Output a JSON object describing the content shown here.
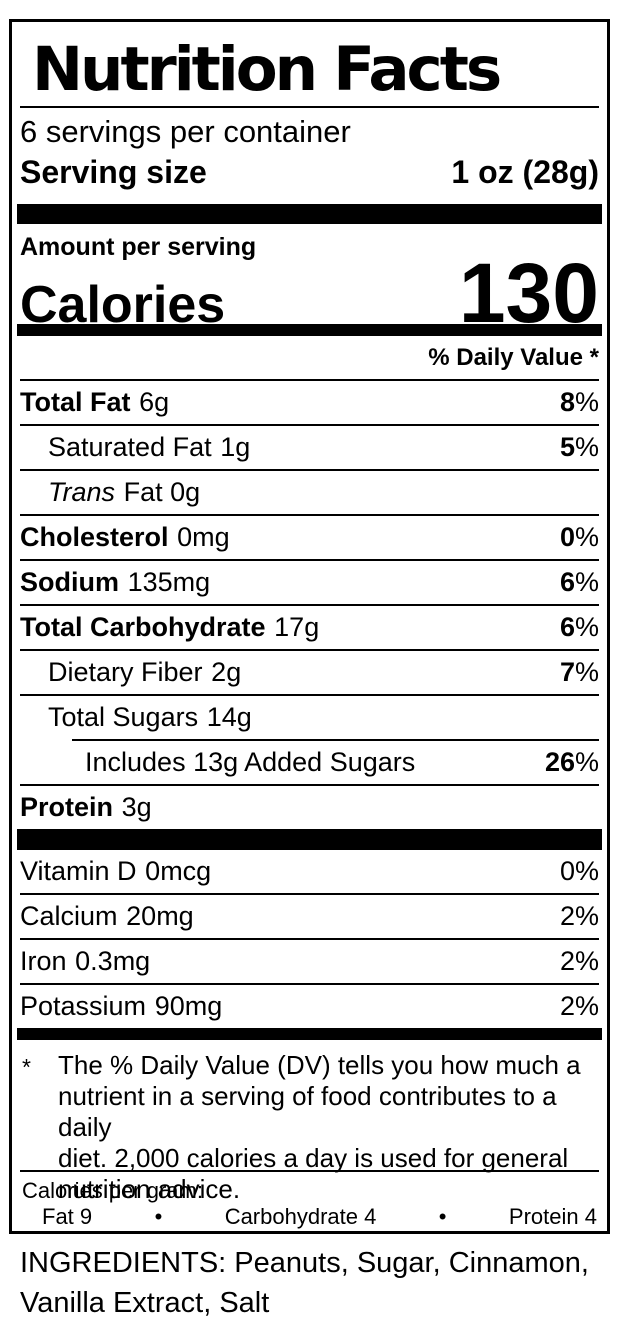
{
  "title": "Nutrition Facts",
  "serving_info": {
    "servings_per_container": "6 servings per container",
    "serving_size_label": "Serving size",
    "serving_size_value": "1 oz (28g)"
  },
  "calories": {
    "amount_per_serving_label": "Amount per serving",
    "calories_label": "Calories",
    "calories_value": "130"
  },
  "daily_value_header": "% Daily Value *",
  "percent_sign": "%",
  "nutrients": [
    {
      "name": "Total Fat",
      "amount": "6g",
      "dv": "8"
    },
    {
      "name": "Saturated Fat",
      "amount": "1g",
      "dv": "5"
    },
    {
      "name_italic": "Trans",
      "name_rest": "Fat 0g"
    },
    {
      "name": "Cholesterol",
      "amount": "0mg",
      "dv": "0"
    },
    {
      "name": "Sodium",
      "amount": "135mg",
      "dv": "6"
    },
    {
      "name": "Total Carbohydrate",
      "amount": "17g",
      "dv": "6"
    },
    {
      "name": "Dietary Fiber",
      "amount": "2g",
      "dv": "7"
    },
    {
      "name": "Total Sugars",
      "amount": "14g"
    },
    {
      "name": "Includes 13g Added Sugars",
      "dv": "26"
    },
    {
      "name": "Protein",
      "amount": "3g"
    }
  ],
  "vitamins": [
    {
      "name": "Vitamin D",
      "amount": "0mcg",
      "dv": "0"
    },
    {
      "name": "Calcium",
      "amount": "20mg",
      "dv": "2"
    },
    {
      "name": "Iron",
      "amount": "0.3mg",
      "dv": "2"
    },
    {
      "name": "Potassium",
      "amount": "90mg",
      "dv": "2"
    }
  ],
  "footnote": {
    "marker": "*",
    "lines": [
      "The % Daily Value (DV) tells you how much a",
      "nutrient in a serving of food contributes to a daily",
      "diet. 2,000 calories a day is used for general",
      "nutrition advice."
    ]
  },
  "calories_per_gram": {
    "heading": "Calories per gram:",
    "bullet": "•",
    "items": [
      "Fat 9",
      "Carbohydrate 4",
      "Protein 4"
    ]
  },
  "ingredients": "INGREDIENTS: Peanuts, Sugar, Cinnamon, Vanilla Extract, Salt",
  "colors": {
    "ink": "#000000",
    "background": "#ffffff"
  }
}
